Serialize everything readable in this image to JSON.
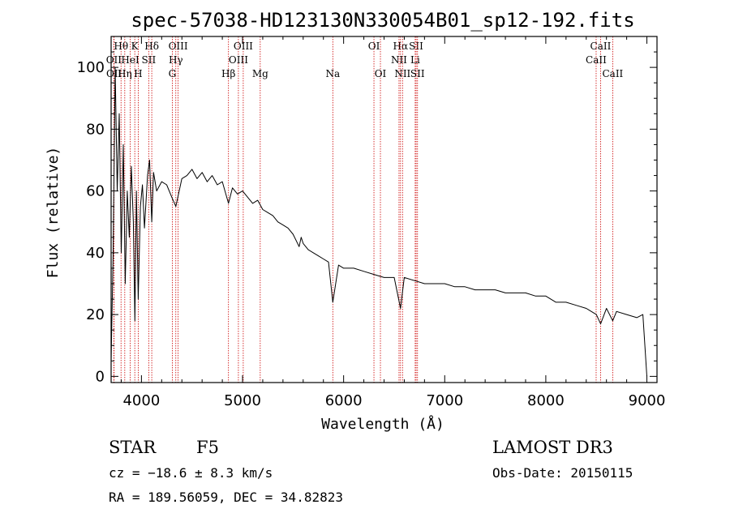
{
  "chart_data": {
    "type": "line",
    "title": "spec-57038-HD123130N330054B01_sp12-192.fits",
    "xlabel": "Wavelength (Å)",
    "ylabel": "Flux (relative)",
    "xlim": [
      3700,
      9100
    ],
    "ylim": [
      -2,
      110
    ],
    "xticks": [
      4000,
      5000,
      6000,
      7000,
      8000,
      9000
    ],
    "yticks": [
      0,
      20,
      40,
      60,
      80,
      100
    ],
    "xtick_labels": [
      "4000",
      "5000",
      "6000",
      "7000",
      "8000",
      "9000"
    ],
    "ytick_labels": [
      "0",
      "20",
      "40",
      "60",
      "80",
      "100"
    ],
    "series": [
      {
        "name": "spectrum",
        "x": [
          3700,
          3720,
          3740,
          3760,
          3780,
          3800,
          3820,
          3840,
          3860,
          3880,
          3900,
          3920,
          3935,
          3950,
          3968,
          3990,
          4010,
          4030,
          4060,
          4080,
          4102,
          4120,
          4150,
          4200,
          4250,
          4300,
          4340,
          4400,
          4450,
          4500,
          4550,
          4600,
          4650,
          4700,
          4750,
          4800,
          4861,
          4900,
          4950,
          5000,
          5050,
          5100,
          5150,
          5200,
          5250,
          5300,
          5350,
          5400,
          5450,
          5500,
          5560,
          5580,
          5600,
          5650,
          5700,
          5750,
          5800,
          5850,
          5893,
          5950,
          6000,
          6100,
          6200,
          6300,
          6400,
          6500,
          6563,
          6600,
          6700,
          6800,
          6900,
          7000,
          7100,
          7200,
          7300,
          7400,
          7500,
          7600,
          7700,
          7800,
          7900,
          8000,
          8100,
          8200,
          8300,
          8400,
          8500,
          8542,
          8600,
          8662,
          8700,
          8800,
          8900,
          8960,
          9000
        ],
        "y": [
          5,
          40,
          100,
          60,
          85,
          40,
          75,
          30,
          60,
          45,
          68,
          50,
          18,
          60,
          25,
          55,
          62,
          48,
          65,
          70,
          50,
          66,
          60,
          63,
          62,
          58,
          55,
          64,
          65,
          67,
          64,
          66,
          63,
          65,
          62,
          63,
          56,
          61,
          59,
          60,
          58,
          56,
          57,
          54,
          53,
          52,
          50,
          49,
          48,
          46,
          42,
          45,
          43,
          41,
          40,
          39,
          38,
          37,
          24,
          36,
          35,
          35,
          34,
          33,
          32,
          32,
          22,
          32,
          31,
          30,
          30,
          30,
          29,
          29,
          28,
          28,
          28,
          27,
          27,
          27,
          26,
          26,
          24,
          24,
          23,
          22,
          20,
          17,
          22,
          18,
          21,
          20,
          19,
          20,
          0
        ]
      }
    ],
    "emission_lines": [
      {
        "label": "Hθ",
        "wavelength": 3798,
        "row": 1
      },
      {
        "label": "K",
        "wavelength": 3934,
        "row": 1
      },
      {
        "label": "Hδ",
        "wavelength": 4102,
        "row": 1
      },
      {
        "label": "OIII",
        "wavelength": 4363,
        "row": 1
      },
      {
        "label": "OIII",
        "wavelength": 5007,
        "row": 1
      },
      {
        "label": "OI",
        "wavelength": 6300,
        "row": 1
      },
      {
        "label": "Hα",
        "wavelength": 6563,
        "row": 1
      },
      {
        "label": "SII",
        "wavelength": 6717,
        "row": 1
      },
      {
        "label": "CaII",
        "wavelength": 8542,
        "row": 1
      },
      {
        "label": "OII",
        "wavelength": 3727,
        "row": 2
      },
      {
        "label": "HeI",
        "wavelength": 3889,
        "row": 2
      },
      {
        "label": "SII",
        "wavelength": 4072,
        "row": 2
      },
      {
        "label": "Hγ",
        "wavelength": 4340,
        "row": 2
      },
      {
        "label": "OIII",
        "wavelength": 4959,
        "row": 2
      },
      {
        "label": "NII",
        "wavelength": 6548,
        "row": 2
      },
      {
        "label": "Li",
        "wavelength": 6708,
        "row": 2
      },
      {
        "label": "CaII",
        "wavelength": 8498,
        "row": 2
      },
      {
        "label": "OII",
        "wavelength": 3729,
        "row": 3
      },
      {
        "label": "Hη",
        "wavelength": 3835,
        "row": 3
      },
      {
        "label": "H",
        "wavelength": 3968,
        "row": 3
      },
      {
        "label": "G",
        "wavelength": 4305,
        "row": 3
      },
      {
        "label": "Hβ",
        "wavelength": 4861,
        "row": 3
      },
      {
        "label": "Mg",
        "wavelength": 5175,
        "row": 3
      },
      {
        "label": "Na",
        "wavelength": 5893,
        "row": 3
      },
      {
        "label": "OI",
        "wavelength": 6364,
        "row": 3
      },
      {
        "label": "NII",
        "wavelength": 6583,
        "row": 3
      },
      {
        "label": "SII",
        "wavelength": 6731,
        "row": 3
      },
      {
        "label": "CaII",
        "wavelength": 8662,
        "row": 3
      }
    ],
    "colors": {
      "spectrum": "#000000",
      "lines": "#cc0000",
      "axes": "#000000"
    }
  },
  "info": {
    "object_type": "STAR",
    "subclass": "F5",
    "survey": "LAMOST DR3",
    "cz": "cz = −18.6 ± 8.3 km/s",
    "obs_date": "Obs-Date: 20150115",
    "coords": "RA = 189.56059, DEC =  34.82823"
  }
}
